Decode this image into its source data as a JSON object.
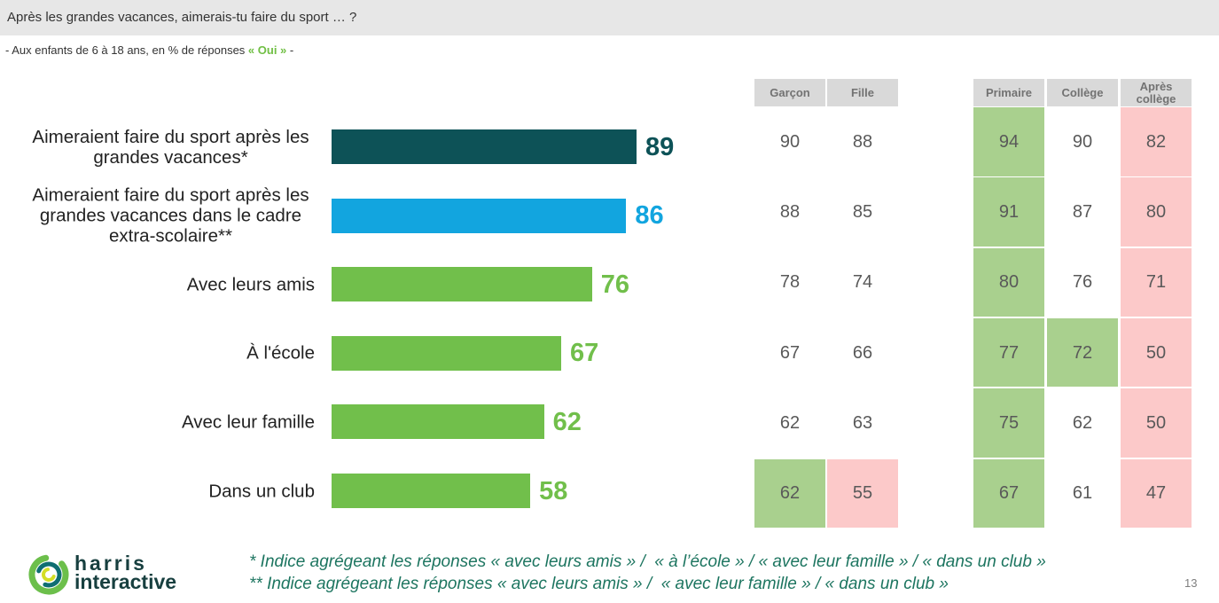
{
  "header": {
    "title": "Après les grandes vacances, aimerais-tu faire du sport … ?"
  },
  "subtitle": {
    "before": "- Aux enfants de 6 à 18 ans, en % de réponses ",
    "highlight": "« Oui »",
    "after": " -"
  },
  "colors": {
    "title_bar": "#e7e7e7",
    "highlight": "#70bf44",
    "footnote": "#1d7560",
    "table_header_bg": "#d9d9d9"
  },
  "chart_data": [
    {
      "type": "bar",
      "orientation": "horizontal",
      "categories": [
        "Aimeraient faire du sport après les grandes vacances*",
        "Aimeraient faire du sport après les grandes vacances dans le cadre extra-scolaire**",
        "Avec leurs amis",
        "À l'école",
        "Avec leur famille",
        "Dans un club"
      ],
      "values": [
        89,
        86,
        76,
        67,
        62,
        58
      ],
      "colors": [
        "#0d5257",
        "#12a5df",
        "#71bf4b",
        "#71bf4b",
        "#71bf4b",
        "#71bf4b"
      ],
      "xlim": [
        0,
        100
      ],
      "grid": false,
      "legend": false,
      "data_labels": true
    },
    {
      "type": "table",
      "columns": [
        "Garçon",
        "Fille",
        "Primaire",
        "Collège",
        "Après collège"
      ],
      "rows": [
        [
          90,
          88,
          94,
          90,
          82
        ],
        [
          88,
          85,
          91,
          87,
          80
        ],
        [
          78,
          74,
          80,
          76,
          71
        ],
        [
          67,
          66,
          77,
          72,
          50
        ],
        [
          62,
          63,
          75,
          62,
          50
        ],
        [
          62,
          55,
          67,
          61,
          47
        ]
      ],
      "cell_fills": [
        [
          null,
          null,
          "#a9d08e",
          null,
          "#fcc9c9"
        ],
        [
          null,
          null,
          "#a9d08e",
          null,
          "#fcc9c9"
        ],
        [
          null,
          null,
          "#a9d08e",
          null,
          "#fcc9c9"
        ],
        [
          null,
          null,
          "#a9d08e",
          "#a9d08e",
          "#fcc9c9"
        ],
        [
          null,
          null,
          "#a9d08e",
          null,
          "#fcc9c9"
        ],
        [
          "#a9d08e",
          "#fcc9c9",
          "#a9d08e",
          null,
          "#fcc9c9"
        ]
      ]
    }
  ],
  "footnotes": [
    "* Indice agrégeant les réponses « avec leurs amis » /  « à l’école » / « avec leur famille » / « dans un club »",
    "** Indice agrégeant les réponses « avec leurs amis » /  « avec leur famille » / « dans un club »"
  ],
  "page_number": "13",
  "logo": {
    "line1": "harris",
    "line2": "interactive",
    "colors": {
      "outer": "#6cbf4b",
      "middle": "#0f6e72",
      "inner": "#d4de25",
      "text": "#173f3f"
    }
  }
}
